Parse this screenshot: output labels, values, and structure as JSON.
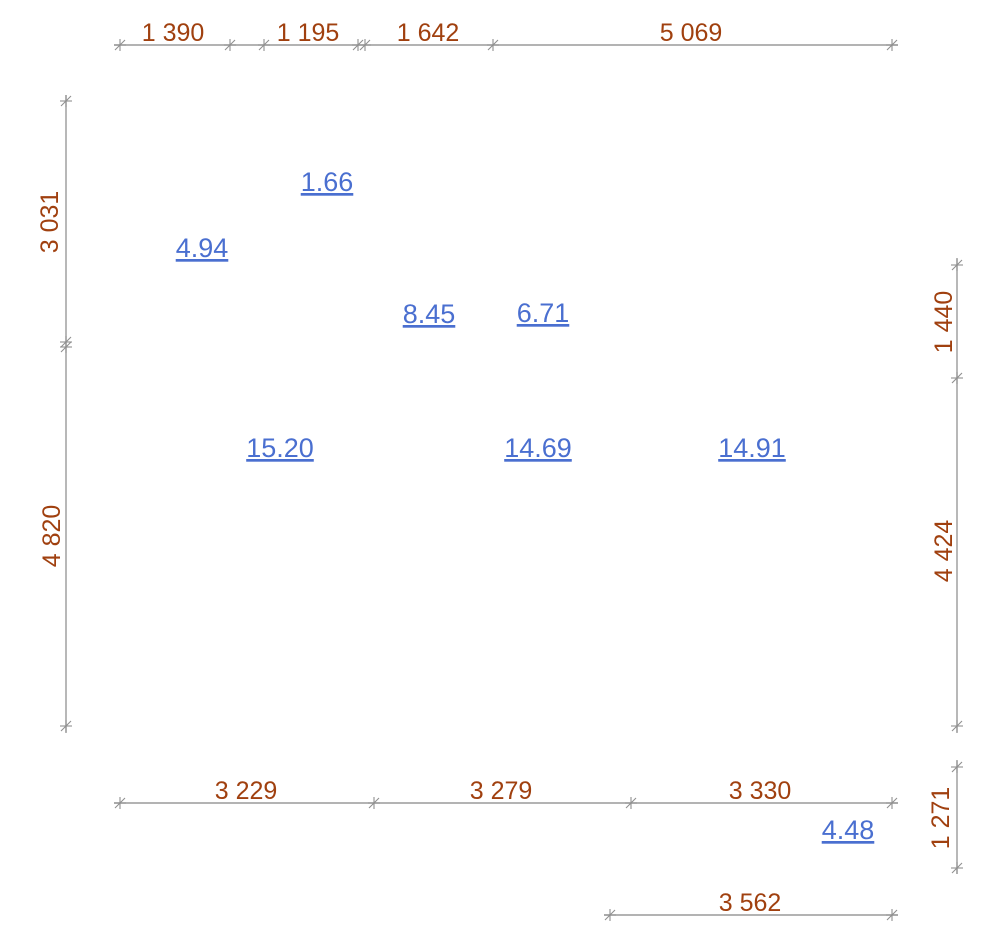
{
  "colors": {
    "dimension_text": "#a0400f",
    "area_label": "#4a6fd0",
    "dimension_line": "#9a9a9a"
  },
  "dimensions": {
    "top": [
      "1 390",
      "1 195",
      "1 642",
      "5 069"
    ],
    "left": [
      "3 031",
      "4 820"
    ],
    "right": [
      "1 440",
      "4 424",
      "1 271"
    ],
    "bottom": [
      "3 229",
      "3 279",
      "3 330"
    ],
    "bottom_extra": [
      "3 562"
    ]
  },
  "areas": [
    "1.66",
    "4.94",
    "8.45",
    "6.71",
    "15.20",
    "14.69",
    "14.91",
    "4.48"
  ]
}
